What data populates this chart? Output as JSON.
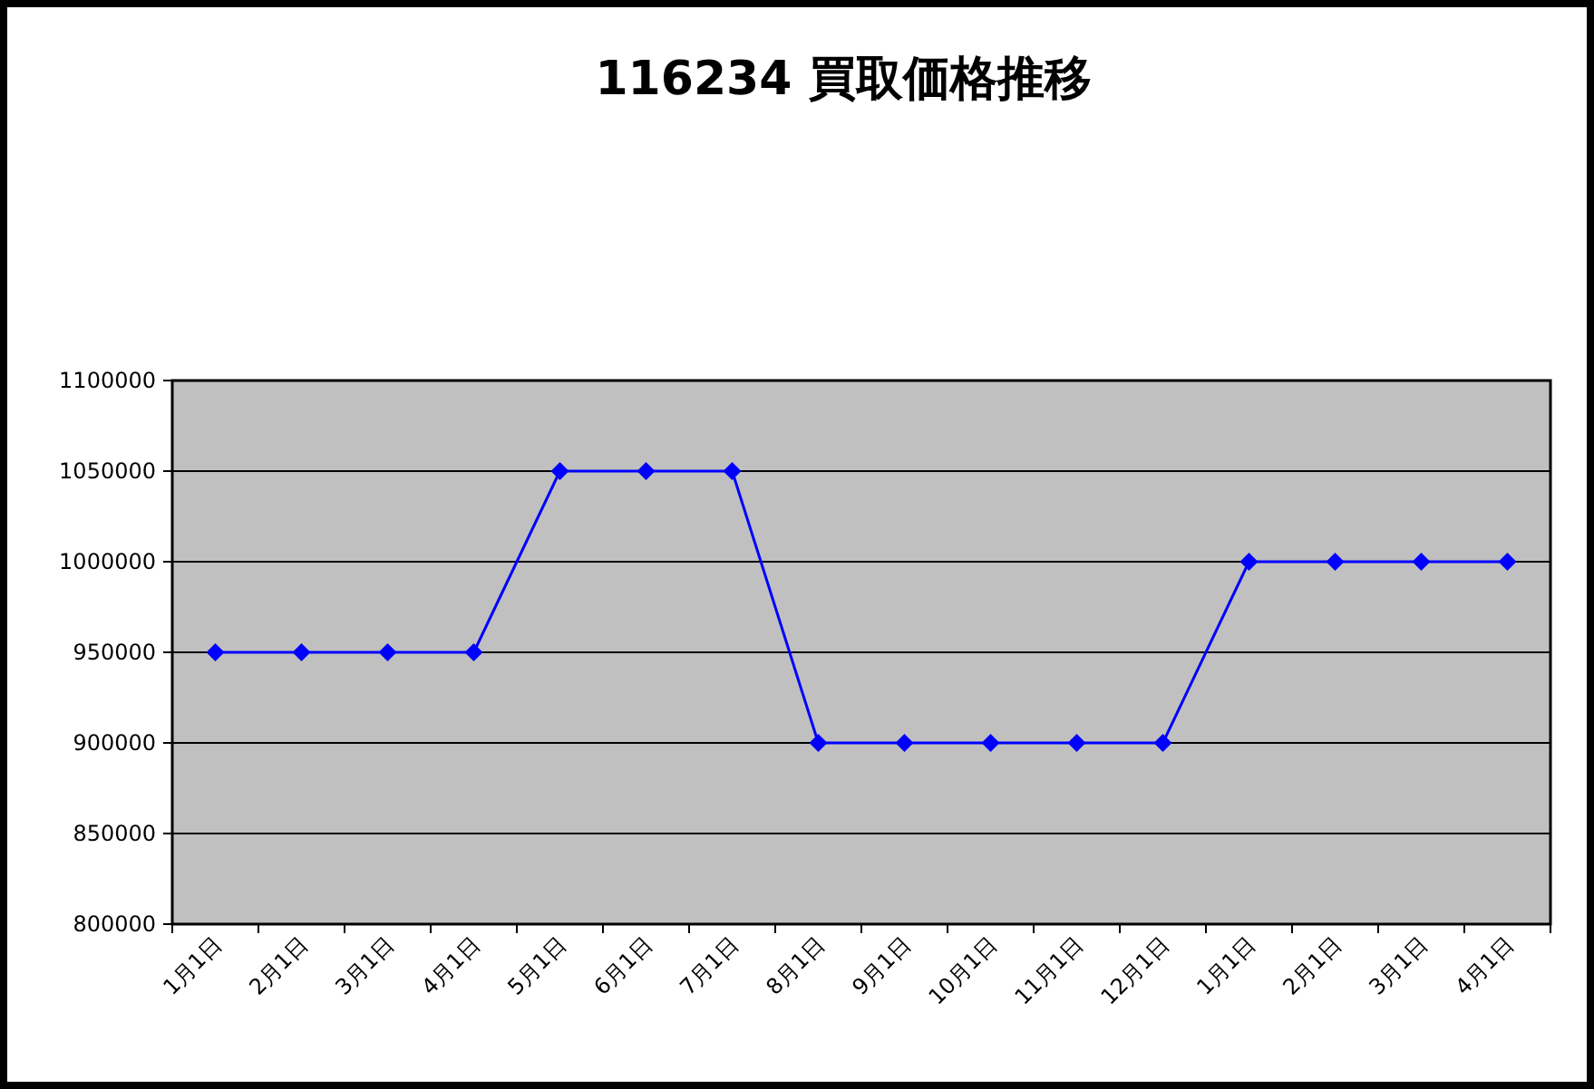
{
  "chart_data": {
    "type": "line",
    "title": "116234 買取価格推移",
    "categories": [
      "1月1日",
      "2月1日",
      "3月1日",
      "4月1日",
      "5月1日",
      "6月1日",
      "7月1日",
      "8月1日",
      "9月1日",
      "10月1日",
      "11月1日",
      "12月1日",
      "1月1日",
      "2月1日",
      "3月1日",
      "4月1日"
    ],
    "series": [
      {
        "color": "#0000ff",
        "values": [
          950000,
          950000,
          950000,
          950000,
          1050000,
          1050000,
          1050000,
          900000,
          900000,
          900000,
          900000,
          900000,
          1000000,
          1000000,
          1000000,
          1000000
        ]
      }
    ],
    "ylim": [
      800000,
      1100000
    ],
    "yticks": [
      800000,
      850000,
      900000,
      950000,
      1000000,
      1050000,
      1100000
    ],
    "grid": "y",
    "marker": "diamond",
    "line_style": "solid"
  }
}
